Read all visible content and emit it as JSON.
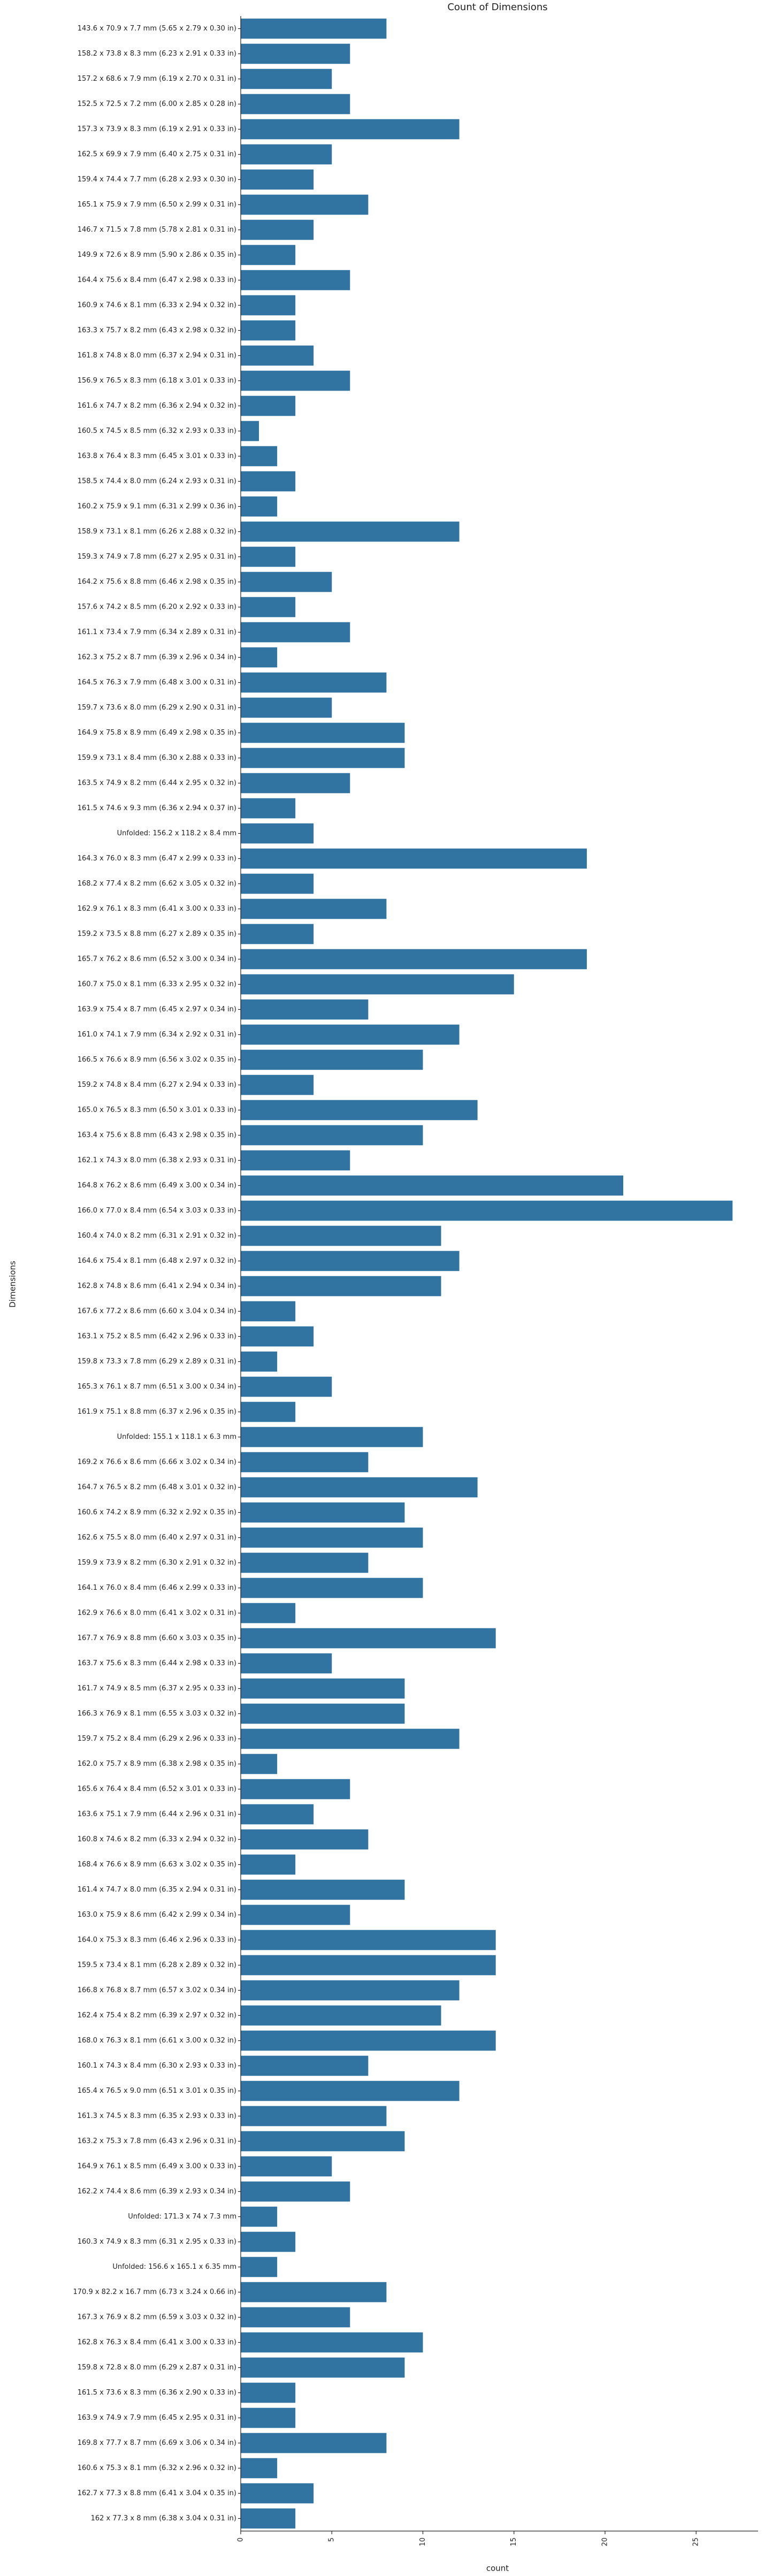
{
  "chart_data": {
    "type": "barh",
    "title": "Count of Dimensions",
    "x_label": "count",
    "y_label": "Dimensions",
    "color": "#3274a1",
    "xlim": [
      0,
      28.4
    ],
    "xticks": [
      0,
      5,
      10,
      15,
      20,
      25
    ],
    "categories": [
      "143.6 x 70.9 x 7.7 mm (5.65 x 2.79 x 0.30 in)",
      "158.2 x 73.8 x 8.3 mm (6.23 x 2.91 x 0.33 in)",
      "157.2 x 68.6 x 7.9 mm (6.19 x 2.70 x 0.31 in)",
      "152.5 x 72.5 x 7.2 mm (6.00 x 2.85 x 0.28 in)",
      "157.3 x 73.9 x 8.3 mm (6.19 x 2.91 x 0.33 in)",
      "162.5 x 69.9 x 7.9 mm (6.40 x 2.75 x 0.31 in)",
      "159.4 x 74.4 x 7.7 mm (6.28 x 2.93 x 0.30 in)",
      "165.1 x 75.9 x 7.9 mm (6.50 x 2.99 x 0.31 in)",
      "146.7 x 71.5 x 7.8 mm (5.78 x 2.81 x 0.31 in)",
      "149.9 x 72.6 x 8.9 mm (5.90 x 2.86 x 0.35 in)",
      "164.4 x 75.6 x 8.4 mm (6.47 x 2.98 x 0.33 in)",
      "160.9 x 74.6 x 8.1 mm (6.33 x 2.94 x 0.32 in)",
      "163.3 x 75.7 x 8.2 mm (6.43 x 2.98 x 0.32 in)",
      "161.8 x 74.8 x 8.0 mm (6.37 x 2.94 x 0.31 in)",
      "156.9 x 76.5 x 8.3 mm (6.18 x 3.01 x 0.33 in)",
      "161.6 x 74.7 x 8.2 mm (6.36 x 2.94 x 0.32 in)",
      "160.5 x 74.5 x 8.5 mm (6.32 x 2.93 x 0.33 in)",
      "163.8 x 76.4 x 8.3 mm (6.45 x 3.01 x 0.33 in)",
      "158.5 x 74.4 x 8.0 mm (6.24 x 2.93 x 0.31 in)",
      "160.2 x 75.9 x 9.1 mm (6.31 x 2.99 x 0.36 in)",
      "158.9 x 73.1 x 8.1 mm (6.26 x 2.88 x 0.32 in)",
      "159.3 x 74.9 x 7.8 mm (6.27 x 2.95 x 0.31 in)",
      "164.2 x 75.6 x 8.8 mm (6.46 x 2.98 x 0.35 in)",
      "157.6 x 74.2 x 8.5 mm (6.20 x 2.92 x 0.33 in)",
      "161.1 x 73.4 x 7.9 mm (6.34 x 2.89 x 0.31 in)",
      "162.3 x 75.2 x 8.7 mm (6.39 x 2.96 x 0.34 in)",
      "164.5 x 76.3 x 7.9 mm (6.48 x 3.00 x 0.31 in)",
      "159.7 x 73.6 x 8.0 mm (6.29 x 2.90 x 0.31 in)",
      "164.9 x 75.8 x 8.9 mm (6.49 x 2.98 x 0.35 in)",
      "159.9 x 73.1 x 8.4 mm (6.30 x 2.88 x 0.33 in)",
      "163.5 x 74.9 x 8.2 mm (6.44 x 2.95 x 0.32 in)",
      "161.5 x 74.6 x 9.3 mm (6.36 x 2.94 x 0.37 in)",
      "Unfolded: 156.2 x 118.2 x 8.4 mm",
      "164.3 x 76.0 x 8.3 mm (6.47 x 2.99 x 0.33 in)",
      "168.2 x 77.4 x 8.2 mm (6.62 x 3.05 x 0.32 in)",
      "162.9 x 76.1 x 8.3 mm (6.41 x 3.00 x 0.33 in)",
      "159.2 x 73.5 x 8.8 mm (6.27 x 2.89 x 0.35 in)",
      "165.7 x 76.2 x 8.6 mm (6.52 x 3.00 x 0.34 in)",
      "160.7 x 75.0 x 8.1 mm (6.33 x 2.95 x 0.32 in)",
      "163.9 x 75.4 x 8.7 mm (6.45 x 2.97 x 0.34 in)",
      "161.0 x 74.1 x 7.9 mm (6.34 x 2.92 x 0.31 in)",
      "166.5 x 76.6 x 8.9 mm (6.56 x 3.02 x 0.35 in)",
      "159.2 x 74.8 x 8.4 mm (6.27 x 2.94 x 0.33 in)",
      "165.0 x 76.5 x 8.3 mm (6.50 x 3.01 x 0.33 in)",
      "163.4 x 75.6 x 8.8 mm (6.43 x 2.98 x 0.35 in)",
      "162.1 x 74.3 x 8.0 mm (6.38 x 2.93 x 0.31 in)",
      "164.8 x 76.2 x 8.6 mm (6.49 x 3.00 x 0.34 in)",
      "166.0 x 77.0 x 8.4 mm (6.54 x 3.03 x 0.33 in)",
      "160.4 x 74.0 x 8.2 mm (6.31 x 2.91 x 0.32 in)",
      "164.6 x 75.4 x 8.1 mm (6.48 x 2.97 x 0.32 in)",
      "162.8 x 74.8 x 8.6 mm (6.41 x 2.94 x 0.34 in)",
      "167.6 x 77.2 x 8.6 mm (6.60 x 3.04 x 0.34 in)",
      "163.1 x 75.2 x 8.5 mm (6.42 x 2.96 x 0.33 in)",
      "159.8 x 73.3 x 7.8 mm (6.29 x 2.89 x 0.31 in)",
      "165.3 x 76.1 x 8.7 mm (6.51 x 3.00 x 0.34 in)",
      "161.9 x 75.1 x 8.8 mm (6.37 x 2.96 x 0.35 in)",
      "Unfolded: 155.1 x 118.1 x 6.3 mm",
      "169.2 x 76.6 x 8.6 mm (6.66 x 3.02 x 0.34 in)",
      "164.7 x 76.5 x 8.2 mm (6.48 x 3.01 x 0.32 in)",
      "160.6 x 74.2 x 8.9 mm (6.32 x 2.92 x 0.35 in)",
      "162.6 x 75.5 x 8.0 mm (6.40 x 2.97 x 0.31 in)",
      "159.9 x 73.9 x 8.2 mm (6.30 x 2.91 x 0.32 in)",
      "164.1 x 76.0 x 8.4 mm (6.46 x 2.99 x 0.33 in)",
      "162.9 x 76.6 x 8.0 mm (6.41 x 3.02 x 0.31 in)",
      "167.7 x 76.9 x 8.8 mm (6.60 x 3.03 x 0.35 in)",
      "163.7 x 75.6 x 8.3 mm (6.44 x 2.98 x 0.33 in)",
      "161.7 x 74.9 x 8.5 mm (6.37 x 2.95 x 0.33 in)",
      "166.3 x 76.9 x 8.1 mm (6.55 x 3.03 x 0.32 in)",
      "159.7 x 75.2 x 8.4 mm (6.29 x 2.96 x 0.33 in)",
      "162.0 x 75.7 x 8.9 mm (6.38 x 2.98 x 0.35 in)",
      "165.6 x 76.4 x 8.4 mm (6.52 x 3.01 x 0.33 in)",
      "163.6 x 75.1 x 7.9 mm (6.44 x 2.96 x 0.31 in)",
      "160.8 x 74.6 x 8.2 mm (6.33 x 2.94 x 0.32 in)",
      "168.4 x 76.6 x 8.9 mm (6.63 x 3.02 x 0.35 in)",
      "161.4 x 74.7 x 8.0 mm (6.35 x 2.94 x 0.31 in)",
      "163.0 x 75.9 x 8.6 mm (6.42 x 2.99 x 0.34 in)",
      "164.0 x 75.3 x 8.3 mm (6.46 x 2.96 x 0.33 in)",
      "159.5 x 73.4 x 8.1 mm (6.28 x 2.89 x 0.32 in)",
      "166.8 x 76.8 x 8.7 mm (6.57 x 3.02 x 0.34 in)",
      "162.4 x 75.4 x 8.2 mm (6.39 x 2.97 x 0.32 in)",
      "168.0 x 76.3 x 8.1 mm (6.61 x 3.00 x 0.32 in)",
      "160.1 x 74.3 x 8.4 mm (6.30 x 2.93 x 0.33 in)",
      "165.4 x 76.5 x 9.0 mm (6.51 x 3.01 x 0.35 in)",
      "161.3 x 74.5 x 8.3 mm (6.35 x 2.93 x 0.33 in)",
      "163.2 x 75.3 x 7.8 mm (6.43 x 2.96 x 0.31 in)",
      "164.9 x 76.1 x 8.5 mm (6.49 x 3.00 x 0.33 in)",
      "162.2 x 74.4 x 8.6 mm (6.39 x 2.93 x 0.34 in)",
      "Unfolded: 171.3 x 74 x 7.3 mm",
      "160.3 x 74.9 x 8.3 mm (6.31 x 2.95 x 0.33 in)",
      "Unfolded: 156.6 x 165.1 x 6.35 mm",
      "170.9 x 82.2 x 16.7 mm (6.73 x 3.24 x 0.66 in)",
      "167.3 x 76.9 x 8.2 mm (6.59 x 3.03 x 0.32 in)",
      "162.8 x 76.3 x 8.4 mm (6.41 x 3.00 x 0.33 in)",
      "159.8 x 72.8 x 8.0 mm (6.29 x 2.87 x 0.31 in)",
      "161.5 x 73.6 x 8.3 mm (6.36 x 2.90 x 0.33 in)",
      "163.9 x 74.9 x 7.9 mm (6.45 x 2.95 x 0.31 in)",
      "169.8 x 77.7 x 8.7 mm (6.69 x 3.06 x 0.34 in)",
      "160.6 x 75.3 x 8.1 mm (6.32 x 2.96 x 0.32 in)",
      "162.7 x 77.3 x 8.8 mm (6.41 x 3.04 x 0.35 in)",
      "162 x 77.3 x 8 mm (6.38 x 3.04 x 0.31 in)"
    ],
    "values": [
      8,
      6,
      5,
      6,
      12,
      5,
      4,
      7,
      4,
      3,
      6,
      3,
      3,
      4,
      6,
      3,
      1,
      2,
      3,
      2,
      12,
      3,
      5,
      3,
      6,
      2,
      8,
      5,
      9,
      9,
      6,
      3,
      4,
      19,
      4,
      8,
      4,
      19,
      15,
      7,
      12,
      10,
      4,
      13,
      10,
      6,
      21,
      27,
      11,
      12,
      11,
      3,
      4,
      2,
      5,
      3,
      10,
      7,
      13,
      9,
      10,
      7,
      10,
      3,
      14,
      5,
      9,
      9,
      12,
      2,
      6,
      4,
      7,
      3,
      9,
      6,
      14,
      14,
      12,
      11,
      14,
      7,
      12,
      8,
      9,
      5,
      6,
      2,
      3,
      2,
      8,
      6,
      10,
      9,
      3,
      3,
      8,
      2,
      4,
      3
    ]
  }
}
